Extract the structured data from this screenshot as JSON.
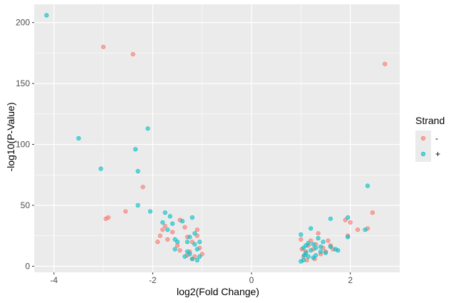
{
  "chart_data": {
    "type": "scatter",
    "xlabel": "log2(Fold Change)",
    "ylabel": "-log10(P-Value)",
    "xlim": [
      -4.4,
      3.0
    ],
    "ylim": [
      -5,
      215
    ],
    "x_ticks": [
      -4,
      -2,
      0,
      2
    ],
    "y_ticks": [
      0,
      50,
      100,
      150,
      200
    ],
    "x_tick_labels": [
      "-4",
      "-2",
      "0",
      "2"
    ],
    "y_tick_labels": [
      "0",
      "50",
      "100",
      "150",
      "200"
    ],
    "grid": true,
    "legend": {
      "title": "Strand",
      "placement": "right"
    },
    "series": [
      {
        "name": "-",
        "color": "#F8766D",
        "points": [
          [
            -3.0,
            180
          ],
          [
            -2.4,
            174
          ],
          [
            -2.2,
            65
          ],
          [
            -2.55,
            45
          ],
          [
            -2.9,
            40
          ],
          [
            -2.95,
            39
          ],
          [
            -1.9,
            20
          ],
          [
            -1.85,
            25
          ],
          [
            -1.8,
            30
          ],
          [
            -1.75,
            33
          ],
          [
            -1.7,
            22
          ],
          [
            -1.6,
            28
          ],
          [
            -1.5,
            17
          ],
          [
            -1.45,
            38
          ],
          [
            -1.35,
            32
          ],
          [
            -1.3,
            24
          ],
          [
            -1.25,
            12
          ],
          [
            -1.2,
            20
          ],
          [
            -1.15,
            8
          ],
          [
            -1.1,
            25
          ],
          [
            -1.05,
            15
          ],
          [
            -1.0,
            10
          ],
          [
            -1.45,
            13
          ],
          [
            -1.3,
            9
          ],
          [
            -1.1,
            30
          ],
          [
            -1.2,
            6
          ],
          [
            1.0,
            22
          ],
          [
            1.05,
            8
          ],
          [
            1.1,
            12
          ],
          [
            1.15,
            17
          ],
          [
            1.2,
            21
          ],
          [
            1.25,
            14
          ],
          [
            1.3,
            18
          ],
          [
            1.35,
            27
          ],
          [
            1.4,
            10
          ],
          [
            1.45,
            15
          ],
          [
            1.5,
            12
          ],
          [
            1.55,
            21
          ],
          [
            1.6,
            17
          ],
          [
            1.65,
            14
          ],
          [
            1.9,
            38
          ],
          [
            1.95,
            25
          ],
          [
            2.0,
            36
          ],
          [
            2.15,
            30
          ],
          [
            2.35,
            31
          ],
          [
            2.45,
            44
          ],
          [
            2.7,
            166
          ],
          [
            1.02,
            14
          ],
          [
            1.12,
            5
          ],
          [
            1.28,
            6
          ]
        ]
      },
      {
        "name": "+",
        "color": "#00BFC4",
        "points": [
          [
            -4.15,
            206
          ],
          [
            -3.5,
            105
          ],
          [
            -3.05,
            80
          ],
          [
            -2.1,
            113
          ],
          [
            -2.35,
            96
          ],
          [
            -2.3,
            78
          ],
          [
            -2.3,
            50
          ],
          [
            -2.05,
            45
          ],
          [
            -1.8,
            36
          ],
          [
            -1.75,
            44
          ],
          [
            -1.65,
            41
          ],
          [
            -1.6,
            35
          ],
          [
            -1.7,
            30
          ],
          [
            -1.55,
            22
          ],
          [
            -1.5,
            20
          ],
          [
            -1.55,
            14
          ],
          [
            -1.4,
            37
          ],
          [
            -1.3,
            20
          ],
          [
            -1.3,
            12
          ],
          [
            -1.25,
            10
          ],
          [
            -1.2,
            40
          ],
          [
            -1.2,
            6
          ],
          [
            -1.15,
            18
          ],
          [
            -1.15,
            27
          ],
          [
            -1.1,
            5
          ],
          [
            -1.05,
            8
          ],
          [
            -1.05,
            20
          ],
          [
            -1.35,
            8
          ],
          [
            -1.25,
            24
          ],
          [
            -1.1,
            14
          ],
          [
            1.0,
            4
          ],
          [
            1.0,
            26
          ],
          [
            1.05,
            15
          ],
          [
            1.05,
            5
          ],
          [
            1.1,
            11
          ],
          [
            1.1,
            17
          ],
          [
            1.15,
            8
          ],
          [
            1.2,
            31
          ],
          [
            1.2,
            13
          ],
          [
            1.25,
            18
          ],
          [
            1.25,
            7
          ],
          [
            1.3,
            15
          ],
          [
            1.35,
            23
          ],
          [
            1.4,
            12
          ],
          [
            1.4,
            16
          ],
          [
            1.45,
            20
          ],
          [
            1.5,
            11
          ],
          [
            1.6,
            39
          ],
          [
            1.7,
            14
          ],
          [
            1.75,
            13
          ],
          [
            1.95,
            40
          ],
          [
            2.3,
            30
          ],
          [
            2.35,
            66
          ],
          [
            1.15,
            19
          ],
          [
            1.3,
            9
          ],
          [
            1.6,
            16
          ],
          [
            1.95,
            24
          ],
          [
            1.07,
            9
          ]
        ]
      }
    ]
  }
}
